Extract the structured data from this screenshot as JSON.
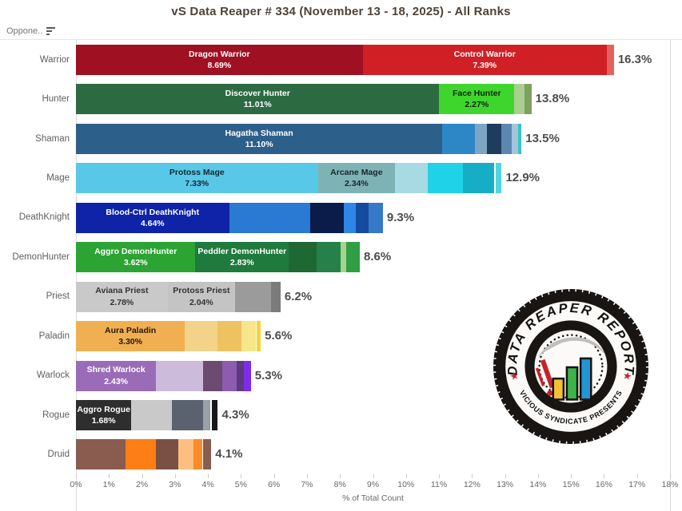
{
  "title": "vS Data Reaper # 334 (November 13 - 18, 2025) - All Ranks",
  "opponent_header": {
    "label": "Oppone.."
  },
  "axis": {
    "title": "% of Total Count",
    "min": 0,
    "max": 18,
    "step": 1,
    "tick_suffix": "%"
  },
  "stamp": {
    "top_text": "DATA REAPER REPORT",
    "bottom_text": "VICIOUS SYNDICATE PRESENTS",
    "star": "★",
    "accent_red": "#c5242b",
    "bar_yellow": "#f2c230",
    "bar_green": "#3cb44a",
    "bar_blue": "#2196d4"
  },
  "chart_data": {
    "type": "bar",
    "orientation": "horizontal",
    "stacked": true,
    "title": "vS Data Reaper # 334 (November 13 - 18, 2025) - All Ranks",
    "xlabel": "% of Total Count",
    "ylabel": "Opponent Class",
    "xlim": [
      0,
      18
    ],
    "grid": false,
    "rows": [
      {
        "class": "Warrior",
        "total": "16.3%",
        "total_value": 16.3,
        "segments": [
          {
            "label": "Dragon Warrior",
            "value": "8.69%",
            "pct": 8.69,
            "color": "#9e1022",
            "text_color": "#ffffff"
          },
          {
            "label": "Control Warrior",
            "value": "7.39%",
            "pct": 7.39,
            "color": "#d11f26",
            "text_color": "#ffffff"
          },
          {
            "pct": 0.22,
            "color": "#e2615e"
          }
        ]
      },
      {
        "class": "Hunter",
        "total": "13.8%",
        "total_value": 13.8,
        "segments": [
          {
            "label": "Discover Hunter",
            "value": "11.01%",
            "pct": 11.01,
            "color": "#2c6b41",
            "text_color": "#ffffff"
          },
          {
            "label": "Face Hunter",
            "value": "2.27%",
            "pct": 2.27,
            "color": "#3ed62d",
            "text_color": "#13240f"
          },
          {
            "pct": 0.3,
            "color": "#a8cf90"
          },
          {
            "pct": 0.22,
            "color": "#7fa05f"
          }
        ]
      },
      {
        "class": "Shaman",
        "total": "13.5%",
        "total_value": 13.5,
        "segments": [
          {
            "label": "Hagatha Shaman",
            "value": "11.10%",
            "pct": 11.1,
            "color": "#2d5f8b",
            "text_color": "#ffffff"
          },
          {
            "pct": 1.0,
            "color": "#2d87c6"
          },
          {
            "pct": 0.35,
            "color": "#7ea6c4"
          },
          {
            "pct": 0.45,
            "color": "#1e3c5e"
          },
          {
            "pct": 0.3,
            "color": "#5c88b0"
          },
          {
            "pct": 0.2,
            "color": "#a3c4da"
          },
          {
            "pct": 0.1,
            "color": "#35c4c6"
          }
        ]
      },
      {
        "class": "Mage",
        "total": "12.9%",
        "total_value": 12.9,
        "segments": [
          {
            "label": "Protoss Mage",
            "value": "7.33%",
            "pct": 7.33,
            "color": "#58c8e8",
            "text_color": "#14272c"
          },
          {
            "label": "Arcane Mage",
            "value": "2.34%",
            "pct": 2.34,
            "color": "#7eb3b6",
            "text_color": "#16262a"
          },
          {
            "pct": 1.0,
            "color": "#a8dae4"
          },
          {
            "pct": 1.05,
            "color": "#1fd2e8"
          },
          {
            "pct": 0.95,
            "color": "#16aec6"
          },
          {
            "pct": 0.05,
            "color": "#ffffff"
          },
          {
            "pct": 0.18,
            "color": "#50d4e0"
          }
        ]
      },
      {
        "class": "DeathKnight",
        "total": "9.3%",
        "total_value": 9.3,
        "segments": [
          {
            "label": "Blood-Ctrl DeathKnight",
            "value": "4.64%",
            "pct": 4.64,
            "color": "#0e23a8",
            "text_color": "#ffffff"
          },
          {
            "pct": 2.45,
            "color": "#2a79d2"
          },
          {
            "pct": 1.02,
            "color": "#0b1c4a"
          },
          {
            "pct": 0.38,
            "color": "#2f86e8"
          },
          {
            "pct": 0.38,
            "color": "#154a9e"
          },
          {
            "pct": 0.43,
            "color": "#3579c8"
          }
        ]
      },
      {
        "class": "DemonHunter",
        "total": "8.6%",
        "total_value": 8.6,
        "segments": [
          {
            "label": "Aggro DemonHunter",
            "value": "3.62%",
            "pct": 3.62,
            "color": "#2ba433",
            "text_color": "#ffffff"
          },
          {
            "label": "Peddler DemonHunter",
            "value": "2.83%",
            "pct": 2.83,
            "color": "#1f7a3d",
            "text_color": "#ffffff"
          },
          {
            "pct": 0.85,
            "color": "#1d6833"
          },
          {
            "pct": 0.72,
            "color": "#26804a"
          },
          {
            "pct": 0.18,
            "color": "#a2d589"
          },
          {
            "pct": 0.4,
            "color": "#2f9e44"
          }
        ]
      },
      {
        "class": "Priest",
        "total": "6.2%",
        "total_value": 6.2,
        "segments": [
          {
            "label": "Aviana Priest",
            "value": "2.78%",
            "pct": 2.78,
            "color": "#c9c9c9",
            "text_color": "#333333"
          },
          {
            "label": "Protoss Priest",
            "value": "2.04%",
            "pct": 2.04,
            "color": "#c4c4c4",
            "text_color": "#333333"
          },
          {
            "pct": 1.1,
            "color": "#9b9b9b"
          },
          {
            "pct": 0.28,
            "color": "#7b7b7b"
          }
        ]
      },
      {
        "class": "Paladin",
        "total": "5.6%",
        "total_value": 5.6,
        "segments": [
          {
            "label": "Aura Paladin",
            "value": "3.30%",
            "pct": 3.3,
            "color": "#f0b052",
            "text_color": "#23180a"
          },
          {
            "pct": 1.0,
            "color": "#f3d389"
          },
          {
            "pct": 0.72,
            "color": "#eec261"
          },
          {
            "pct": 0.43,
            "color": "#f6e58a"
          },
          {
            "pct": 0.03,
            "color": "#fcf9e8"
          },
          {
            "pct": 0.12,
            "color": "#f3d637"
          }
        ]
      },
      {
        "class": "Warlock",
        "total": "5.3%",
        "total_value": 5.3,
        "segments": [
          {
            "label": "Shred Warlock",
            "value": "2.43%",
            "pct": 2.43,
            "color": "#9a6cb8",
            "text_color": "#ffffff"
          },
          {
            "pct": 1.42,
            "color": "#ccbbdb"
          },
          {
            "pct": 0.58,
            "color": "#6d4a6f"
          },
          {
            "pct": 0.45,
            "color": "#8d5cae"
          },
          {
            "pct": 0.2,
            "color": "#5d3a80"
          },
          {
            "pct": 0.22,
            "color": "#7d2ceb"
          }
        ]
      },
      {
        "class": "Rogue",
        "total": "4.3%",
        "total_value": 4.3,
        "segments": [
          {
            "label": "Aggro Rogue",
            "value": "1.68%",
            "pct": 1.68,
            "color": "#2e2e2e",
            "text_color": "#ffffff"
          },
          {
            "pct": 1.22,
            "color": "#c9c9c9"
          },
          {
            "pct": 0.95,
            "color": "#5a6270"
          },
          {
            "pct": 0.23,
            "color": "#9aa0a8"
          },
          {
            "pct": 0.05,
            "color": "#ffffff"
          },
          {
            "pct": 0.17,
            "color": "#18181b"
          }
        ]
      },
      {
        "class": "Druid",
        "total": "4.1%",
        "total_value": 4.1,
        "segments": [
          {
            "pct": 1.5,
            "color": "#8a5c50"
          },
          {
            "pct": 0.93,
            "color": "#fd7e14"
          },
          {
            "pct": 0.68,
            "color": "#7b5044"
          },
          {
            "pct": 0.44,
            "color": "#fcbf80"
          },
          {
            "pct": 0.27,
            "color": "#f98b28"
          },
          {
            "pct": 0.04,
            "color": "#fdfdfd"
          },
          {
            "pct": 0.24,
            "color": "#8a5c50"
          }
        ]
      }
    ]
  }
}
